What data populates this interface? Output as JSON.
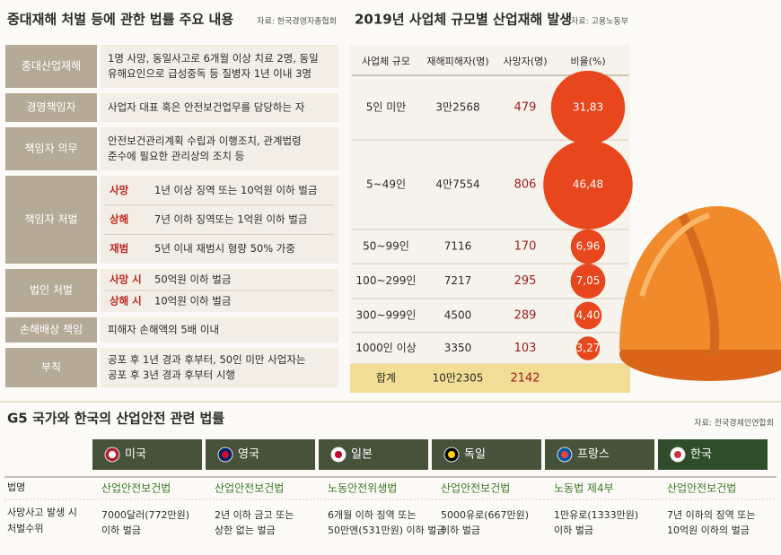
{
  "left": {
    "title": "중대재해 처벌 등에 관한 법률 주요 내용",
    "source": "자료: 한국경영자총협회",
    "rows": [
      {
        "label": "중대산업재해",
        "lines": [
          "1명 사망, 동일사고로 6개월 이상 치료 2명, 동일",
          "유해요인으로 급성중독 등 질병자 1년 이내 3명"
        ]
      },
      {
        "label": "경영책임자",
        "lines": [
          "사업자 대표 혹은 안전보건업무를 담당하는 자"
        ]
      },
      {
        "label": "책임자 의무",
        "lines": [
          "안전보건관리계획 수립과 이행조치, 관계법령",
          "준수에 필요한 관리상의 조치 등"
        ]
      },
      {
        "label": "책임자 처벌",
        "items": [
          [
            "사망",
            "1년 이상 징역 또는 10억원 이하 벌금"
          ],
          [
            "상해",
            "7년 이하 징역또는 1억원 이하 벌금"
          ],
          [
            "재범",
            "5년 이내 재범시 형량 50% 가중"
          ]
        ]
      },
      {
        "label": "법인 처벌",
        "items": [
          [
            "사망 시",
            "50억원 이하 벌금"
          ],
          [
            "상해 시",
            "10억원 이하 벌금"
          ]
        ]
      },
      {
        "label": "손해배상 책임",
        "lines": [
          "피해자 손해액의 5배 이내"
        ]
      },
      {
        "label": "부칙",
        "lines": [
          "공포 후 1년 경과 후부터, 50인 미만 사업자는",
          "공포 후 3년 경과 후부터 시행"
        ]
      }
    ]
  },
  "right": {
    "title": "2019년 사업체 규모별 산업재해 발생",
    "source": "자료: 고용노동부",
    "headers": [
      "사업체 규모",
      "재해피해자(명)",
      "사망자(명)",
      "비율(%)"
    ],
    "rows": [
      {
        "size": "5인 미만",
        "victims": "3만2568",
        "deaths": 479,
        "ratio": {
          "value": 31.83,
          "label": "31,83"
        }
      },
      {
        "size": "5~49인",
        "victims": "4만7554",
        "deaths": 806,
        "ratio": {
          "value": 46.48,
          "label": "46,48"
        }
      },
      {
        "size": "50~99인",
        "victims": "7116",
        "deaths": 170,
        "ratio": {
          "value": 6.96,
          "label": "6,96"
        }
      },
      {
        "size": "100~299인",
        "victims": "7217",
        "deaths": 295,
        "ratio": {
          "value": 7.05,
          "label": "7,05"
        }
      },
      {
        "size": "300~999인",
        "victims": "4500",
        "deaths": 289,
        "ratio": {
          "value": 4.4,
          "label": "4,40"
        }
      },
      {
        "size": "1000인 이상",
        "victims": "3350",
        "deaths": 103,
        "ratio": {
          "value": 3.27,
          "label": "3,27"
        }
      }
    ],
    "total": {
      "size": "합계",
      "victims": "10만2305",
      "deaths": 2142
    }
  },
  "bottom": {
    "title": "G5 국가와 한국의 산업안전 관련 법률",
    "source": "자료: 전국경제인연합회",
    "row_labels": [
      [
        "법명"
      ],
      [
        "사망사고 발생 시",
        "처벌수위"
      ]
    ],
    "countries": [
      {
        "name": "미국",
        "law": "산업안전보건법",
        "penalty": [
          "7000달러(772만원)",
          "이하 벌금"
        ]
      },
      {
        "name": "영국",
        "law": "산업안전보건법",
        "penalty": [
          "2년 이하 금고 또는",
          "상한 없는 벌금"
        ]
      },
      {
        "name": "일본",
        "law": "노동안전위생법",
        "penalty": [
          "6개월 이하 징역 또는",
          "50만엔(531만원) 이하 벌금"
        ]
      },
      {
        "name": "독일",
        "law": "산업안전보건법",
        "penalty": [
          "5000유로(667만원)",
          "이하 벌금"
        ]
      },
      {
        "name": "프랑스",
        "law": "노동법 제4부",
        "penalty": [
          "1만유로(1333만원)",
          "이하 벌금"
        ]
      },
      {
        "name": "한국",
        "law": "산업안전보건법",
        "penalty": [
          "7년 이하의 징역 또는",
          "10억원 이하의 벌금"
        ]
      }
    ]
  }
}
